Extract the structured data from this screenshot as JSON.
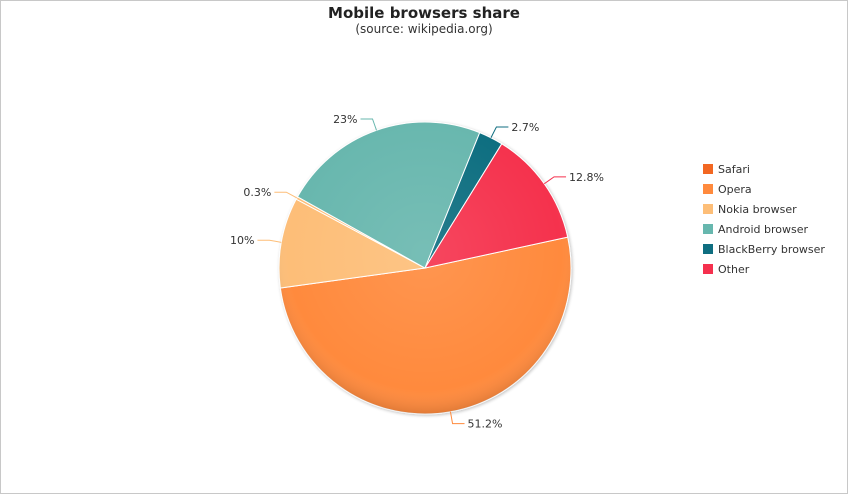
{
  "chart_data": {
    "type": "pie",
    "title": "Mobile browsers share",
    "subtitle": "(source: wikipedia.org)",
    "legend_position": "right",
    "slices": [
      {
        "name": "Safari",
        "value": 0,
        "label": "",
        "color": "#f26722"
      },
      {
        "name": "Opera",
        "value": 51.2,
        "label": "51.2%",
        "color": "#ff8a3d"
      },
      {
        "name": "Nokia browser",
        "value": 10,
        "label": "10%",
        "color": "#fdbe78"
      },
      {
        "name": "Nokia browser",
        "value": 0.3,
        "label": "0.3%",
        "color": "#fdbe78"
      },
      {
        "name": "Android browser",
        "value": 23,
        "label": "23%",
        "color": "#67b7ae"
      },
      {
        "name": "BlackBerry browser",
        "value": 2.7,
        "label": "2.7%",
        "color": "#0f6e80"
      },
      {
        "name": "Other",
        "value": 12.8,
        "label": "12.8%",
        "color": "#f5304e"
      }
    ],
    "legend": [
      {
        "name": "Safari",
        "color": "#f26722"
      },
      {
        "name": "Opera",
        "color": "#ff8a3d"
      },
      {
        "name": "Nokia browser",
        "color": "#fdbe78"
      },
      {
        "name": "Android browser",
        "color": "#67b7ae"
      },
      {
        "name": "BlackBerry browser",
        "color": "#0f6e80"
      },
      {
        "name": "Other",
        "color": "#f5304e"
      }
    ]
  }
}
